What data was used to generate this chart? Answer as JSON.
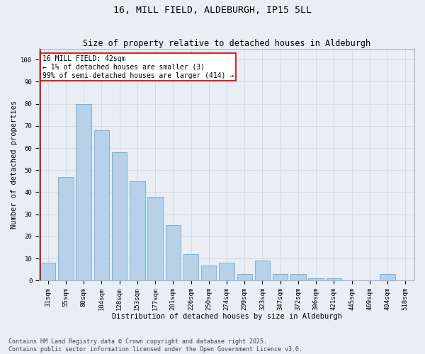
{
  "title": "16, MILL FIELD, ALDEBURGH, IP15 5LL",
  "subtitle": "Size of property relative to detached houses in Aldeburgh",
  "xlabel": "Distribution of detached houses by size in Aldeburgh",
  "ylabel": "Number of detached properties",
  "categories": [
    "31sqm",
    "55sqm",
    "80sqm",
    "104sqm",
    "128sqm",
    "153sqm",
    "177sqm",
    "201sqm",
    "226sqm",
    "250sqm",
    "274sqm",
    "299sqm",
    "323sqm",
    "347sqm",
    "372sqm",
    "396sqm",
    "421sqm",
    "445sqm",
    "469sqm",
    "494sqm",
    "518sqm"
  ],
  "values": [
    8,
    47,
    80,
    68,
    58,
    45,
    38,
    25,
    12,
    7,
    8,
    3,
    9,
    3,
    3,
    1,
    1,
    0,
    0,
    3,
    0
  ],
  "bar_color": "#b8d0e8",
  "bar_edge_color": "#6baed6",
  "highlight_color": "#cc0000",
  "annotation_text": "16 MILL FIELD: 42sqm\n← 1% of detached houses are smaller (3)\n99% of semi-detached houses are larger (414) →",
  "annotation_box_color": "#ffffff",
  "annotation_box_edge_color": "#cc0000",
  "ylim": [
    0,
    105
  ],
  "yticks": [
    0,
    10,
    20,
    30,
    40,
    50,
    60,
    70,
    80,
    90,
    100
  ],
  "grid_color": "#d0d8e0",
  "background_color": "#e8eef4",
  "footer_line1": "Contains HM Land Registry data © Crown copyright and database right 2025.",
  "footer_line2": "Contains public sector information licensed under the Open Government Licence v3.0.",
  "title_fontsize": 9.5,
  "subtitle_fontsize": 8.5,
  "axis_label_fontsize": 7.5,
  "tick_fontsize": 6.5,
  "annotation_fontsize": 7,
  "footer_fontsize": 6
}
